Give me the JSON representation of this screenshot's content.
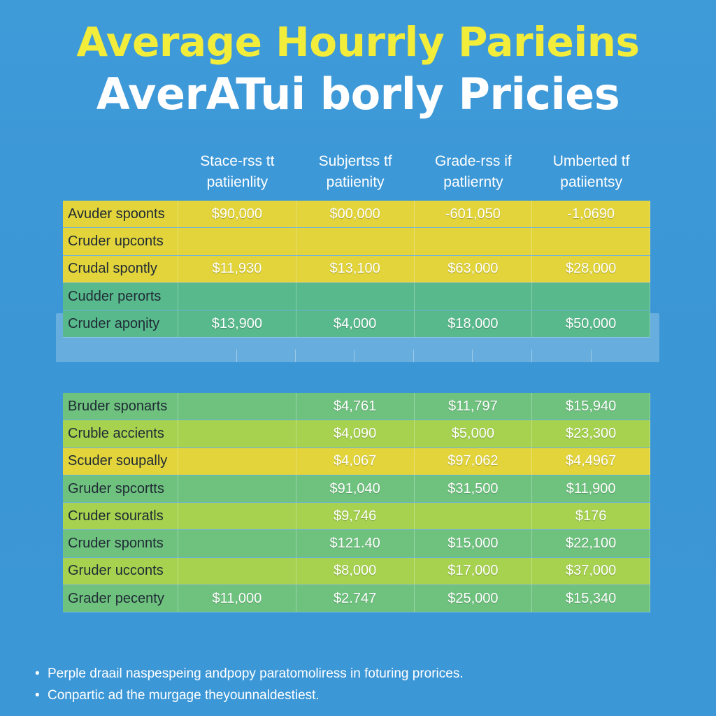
{
  "title_line1": "Average Hourrly Pariеins",
  "title_line2": "AverATui borly Pricies",
  "columns": [
    {
      "line1": "Stace-rss tt",
      "line2": "patiienlity"
    },
    {
      "line1": "Subjertss tf",
      "line2": "patiienity"
    },
    {
      "line1": "Grade-rss if",
      "line2": "patliernty"
    },
    {
      "line1": "Umberted tf",
      "line2": "patiientsy"
    }
  ],
  "table_top": [
    {
      "label": "Avuder spoonts",
      "values": [
        "$90,000",
        "$00,000",
        "-601,050",
        "-1,0690"
      ],
      "color": "yellow"
    },
    {
      "label": "Cruder upconts",
      "values": [
        "",
        "",
        "",
        ""
      ],
      "color": "yellow"
    },
    {
      "label": "Crudal spontly",
      "values": [
        "$11,930",
        "$13,100",
        "$63,000",
        "$28,000"
      ],
      "color": "yellow"
    },
    {
      "label": "Cudder perorts",
      "values": [
        "",
        "",
        "",
        ""
      ],
      "color": "teal"
    },
    {
      "label": "Cruder apoηity",
      "values": [
        "$13,900",
        "$4,000",
        "$18,000",
        "$50,000"
      ],
      "color": "teal"
    }
  ],
  "table_bottom": [
    {
      "label": "Bruder sponarts",
      "values": [
        "",
        "$4,761",
        "$11,797",
        "$15,940"
      ],
      "color": "green"
    },
    {
      "label": "Cruble accients",
      "values": [
        "",
        "$4,090",
        "$5,000",
        "$23,300"
      ],
      "color": "lime"
    },
    {
      "label": "Scuder soupally",
      "values": [
        "",
        "$4,067",
        "$97,062",
        "$4,4967"
      ],
      "color": "yellow"
    },
    {
      "label": "Gruder spcortts",
      "values": [
        "",
        "$91,040",
        "$31,500",
        "$11,900"
      ],
      "color": "green"
    },
    {
      "label": "Cruder souratls",
      "values": [
        "",
        "$9,746",
        "",
        "$176"
      ],
      "color": "lime"
    },
    {
      "label": "Cruder sponnts",
      "values": [
        "",
        "$121.40",
        "$15,000",
        "$22,100"
      ],
      "color": "green"
    },
    {
      "label": "Gruder ucconts",
      "values": [
        "",
        "$8,000",
        "$17,000",
        "$37,000"
      ],
      "color": "lime"
    },
    {
      "label": "Grader pecenty",
      "values": [
        "$11,000",
        "$2.747",
        "$25,000",
        "$15,340"
      ],
      "color": "green"
    }
  ],
  "notes": [
    "Perple draail naspespeing andpopy paratomoliress in foturing prorices.",
    "Conpartic ad the murgage theyounnaldestiest."
  ]
}
